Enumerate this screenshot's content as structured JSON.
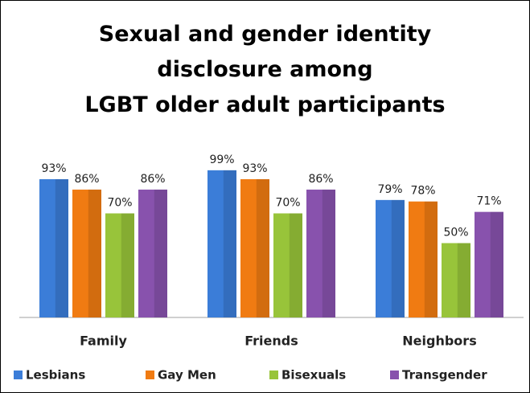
{
  "chart_data": {
    "type": "bar",
    "title": "Sexual and gender identity\ndisclosure among\nLGBT older adult participants",
    "categories": [
      "Family",
      "Friends",
      "Neighbors"
    ],
    "series": [
      {
        "name": "Lesbians",
        "color": "#3b7dd8",
        "values": [
          93,
          99,
          79
        ],
        "value_labels": [
          "93%",
          "99%",
          "79%"
        ]
      },
      {
        "name": "Gay Men",
        "color": "#f07b12",
        "values": [
          86,
          93,
          78
        ],
        "value_labels": [
          "86%",
          "93%",
          "78%"
        ]
      },
      {
        "name": "Bisexuals",
        "color": "#98c43a",
        "values": [
          70,
          70,
          50
        ],
        "value_labels": [
          "70%",
          "70%",
          "50%"
        ]
      },
      {
        "name": "Transgender",
        "color": "#8852ad",
        "values": [
          86,
          86,
          71
        ],
        "value_labels": [
          "86%",
          "86%",
          "71%"
        ]
      }
    ],
    "ylim": [
      0,
      100
    ],
    "legend": "bottom"
  }
}
